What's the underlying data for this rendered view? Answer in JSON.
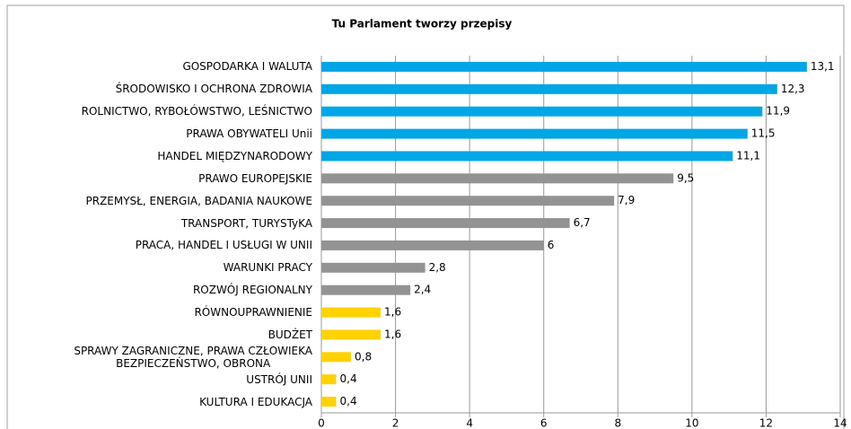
{
  "chart_data": {
    "type": "hbar",
    "title": "Tu Parlament tworzy przepisy",
    "categories": [
      "GOSPODARKA I WALUTA",
      "ŚRODOWISKO I OCHRONA ZDROWIA",
      "ROLNICTWO, RYBOŁÓWSTWO, LEŚNICTWO",
      "PRAWA OBYWATELI Unii",
      "HANDEL MIĘDZYNARODOWY",
      "PRAWO EUROPEJSKIE",
      "PRZEMYSŁ, ENERGIA, BADANIA NAUKOWE",
      "TRANSPORT, TURYSTyKA",
      "PRACA, HANDEL I USŁUGI W UNII",
      "WARUNKI PRACY",
      "ROZWÓJ REGIONALNY",
      "RÓWNOUPRAWNIENIE",
      "BUDŻET",
      "SPRAWY ZAGRANICZNE, PRAWA CZŁOWIEKA\nBEZPIECZEŃSTWO, OBRONA",
      "USTRÓJ UNII",
      "KULTURA I EDUKACJA"
    ],
    "values": [
      13.1,
      12.3,
      11.9,
      11.5,
      11.1,
      9.5,
      7.9,
      6.7,
      6,
      2.8,
      2.4,
      1.6,
      1.6,
      0.8,
      0.4,
      0.4
    ],
    "value_labels": [
      "13,1",
      "12,3",
      "11,9",
      "11,5",
      "11,1",
      "9,5",
      "7,9",
      "6,7",
      "6",
      "2,8",
      "2,4",
      "1,6",
      "1,6",
      "0,8",
      "0,4",
      "0,4"
    ],
    "colors": [
      "#00a6e6",
      "#00a6e6",
      "#00a6e6",
      "#00a6e6",
      "#00a6e6",
      "#939393",
      "#939393",
      "#939393",
      "#939393",
      "#939393",
      "#939393",
      "#ffd200",
      "#ffd200",
      "#ffd200",
      "#ffd200",
      "#ffd200"
    ],
    "xlim": [
      0,
      14
    ],
    "xticks": [
      0,
      2,
      4,
      6,
      8,
      10,
      12,
      14
    ],
    "grid": true
  }
}
